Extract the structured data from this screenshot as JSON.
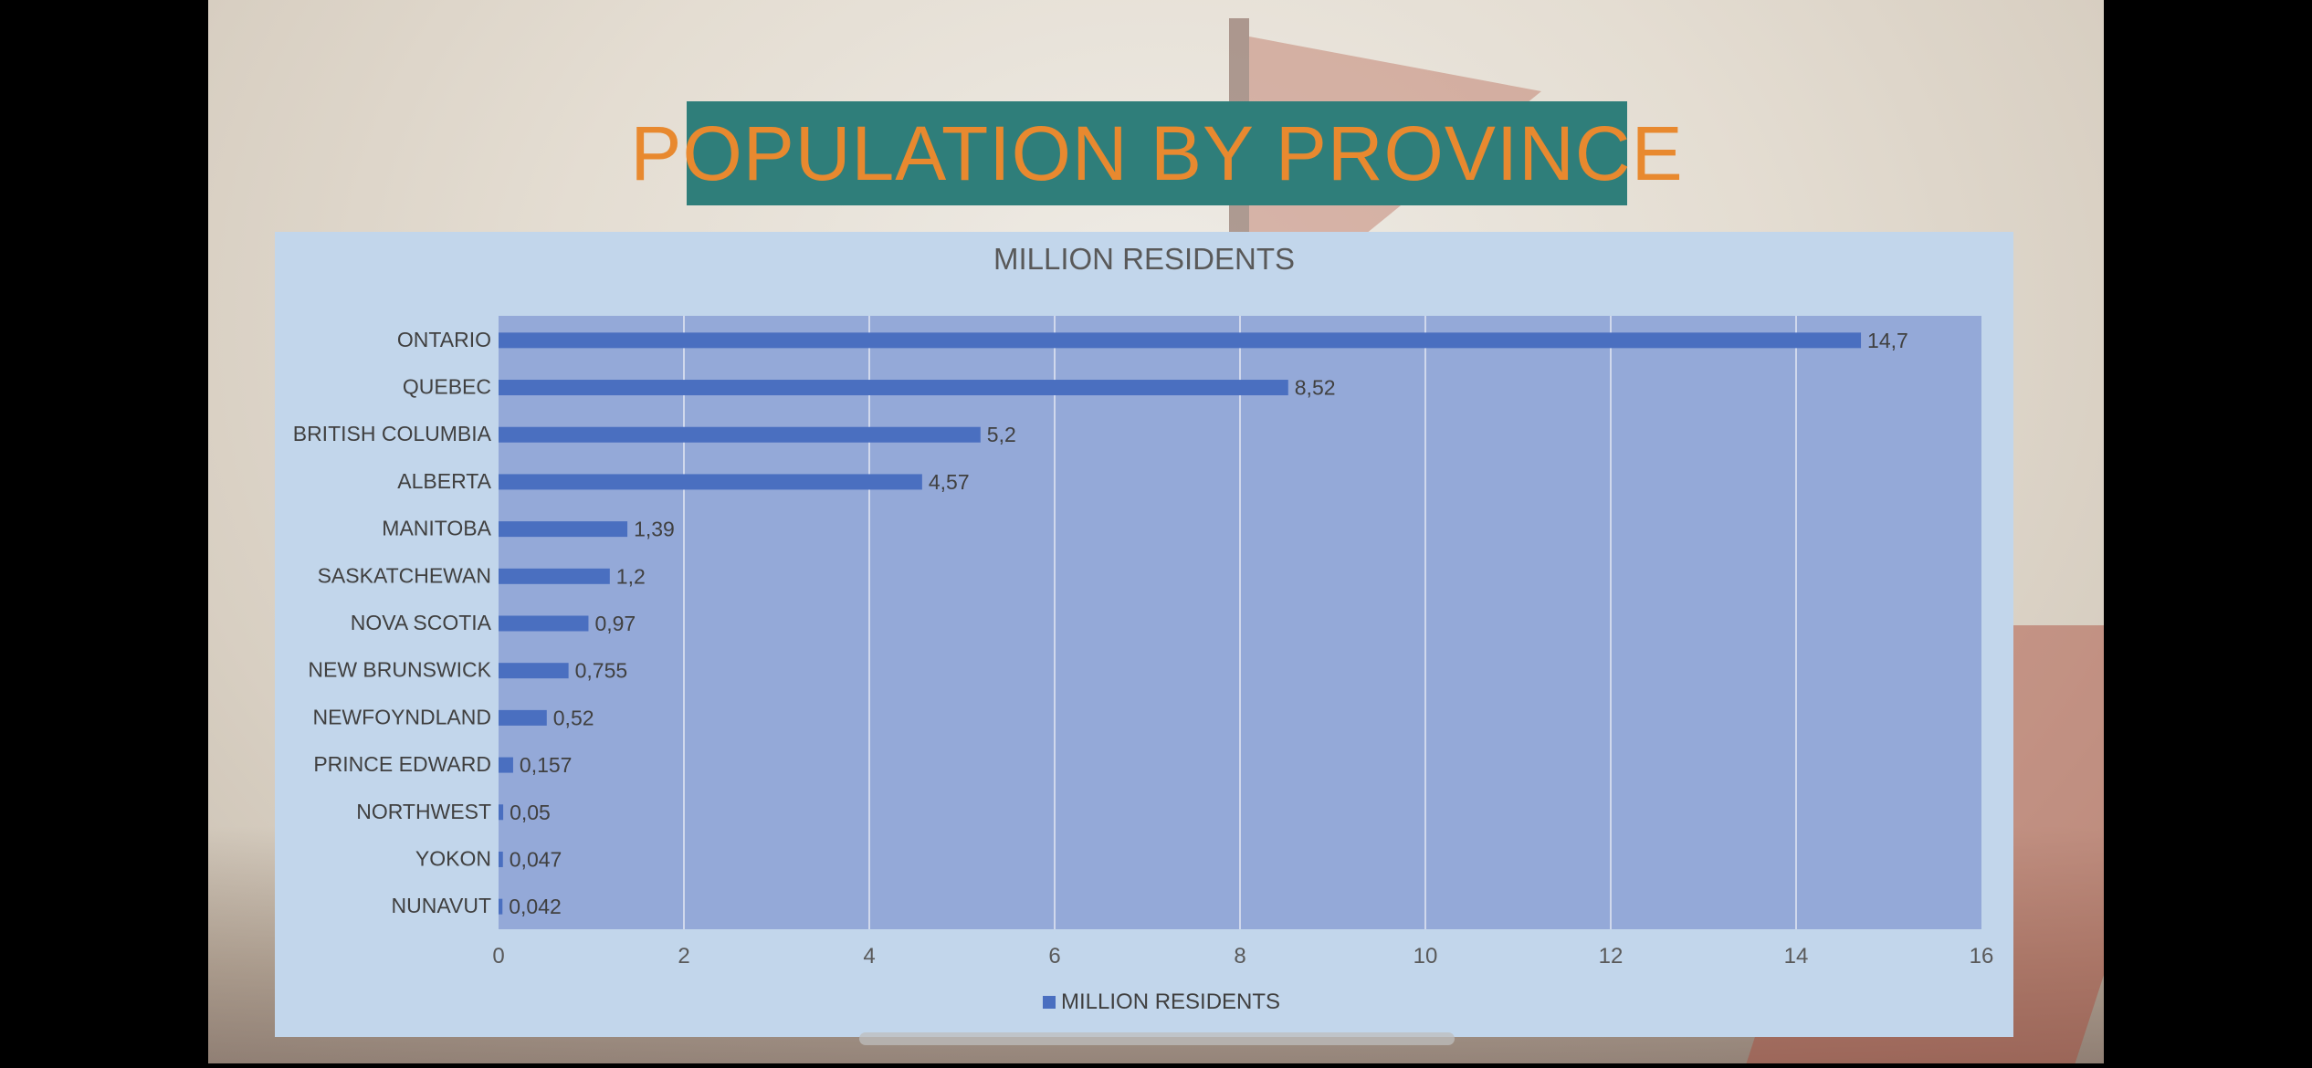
{
  "slide": {
    "title": "POPULATION BY PROVINCE"
  },
  "colors": {
    "title_banner": "#2f7e7a",
    "title_text": "#e8892f",
    "chart_panel": "#c2d6eb",
    "plot_area": "#94a9d8",
    "bar": "#4a6fc0",
    "text": "#404040"
  },
  "chart_data": {
    "type": "bar",
    "orientation": "horizontal",
    "title": "MILLION RESIDENTS",
    "categories": [
      "ONTARIO",
      "QUEBEC",
      "BRITISH COLUMBIA",
      "ALBERTA",
      "MANITOBA",
      "SASKATCHEWAN",
      "NOVA SCOTIA",
      "NEW BRUNSWICK",
      "NEWFOYNDLAND",
      "PRINCE EDWARD",
      "NORTHWEST",
      "YOKON",
      "NUNAVUT"
    ],
    "series": [
      {
        "name": "MILLION RESIDENTS",
        "values": [
          14.7,
          8.52,
          5.2,
          4.57,
          1.39,
          1.2,
          0.97,
          0.755,
          0.52,
          0.157,
          0.05,
          0.047,
          0.042
        ],
        "labels": [
          "14,7",
          "8,52",
          "5,2",
          "4,57",
          "1,39",
          "1,2",
          "0,97",
          "0,755",
          "0,52",
          "0,157",
          "0,05",
          "0,047",
          "0,042"
        ]
      }
    ],
    "xlim": [
      0,
      16
    ],
    "xticks": [
      "0",
      "2",
      "4",
      "6",
      "8",
      "10",
      "12",
      "14",
      "16"
    ],
    "grid": "vertical",
    "legend": "bottom"
  }
}
